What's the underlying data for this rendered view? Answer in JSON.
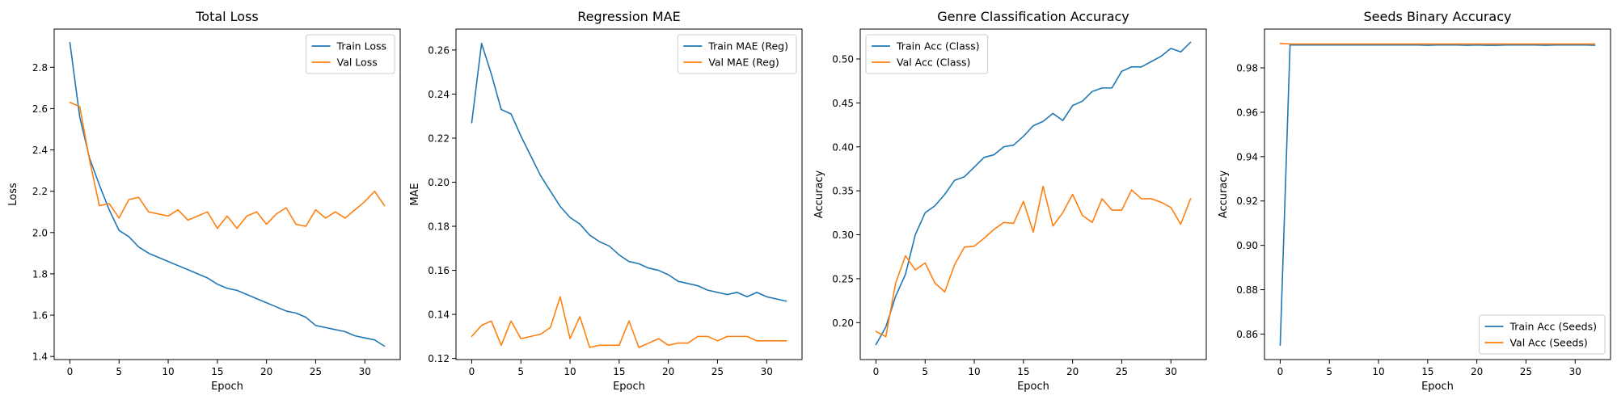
{
  "chart_data": [
    {
      "type": "line",
      "title": "Total Loss",
      "xlabel": "Epoch",
      "ylabel": "Loss",
      "xlim": [
        -1.6,
        33.6
      ],
      "ylim": [
        1.385,
        2.985
      ],
      "xticks": [
        0,
        5,
        10,
        15,
        20,
        25,
        30
      ],
      "yticks": [
        1.4,
        1.6,
        1.8,
        2.0,
        2.2,
        2.4,
        2.6,
        2.8
      ],
      "tick_decimals": 1,
      "legend_position": "top-right",
      "grid": false,
      "x": [
        0,
        1,
        2,
        3,
        4,
        5,
        6,
        7,
        8,
        9,
        10,
        11,
        12,
        13,
        14,
        15,
        16,
        17,
        18,
        19,
        20,
        21,
        22,
        23,
        24,
        25,
        26,
        27,
        28,
        29,
        30,
        31,
        32
      ],
      "series": [
        {
          "name": "Train Loss",
          "color": "#1f77b4",
          "values": [
            2.92,
            2.56,
            2.36,
            2.23,
            2.11,
            2.01,
            1.98,
            1.93,
            1.9,
            1.88,
            1.86,
            1.84,
            1.82,
            1.8,
            1.78,
            1.75,
            1.73,
            1.72,
            1.7,
            1.68,
            1.66,
            1.64,
            1.62,
            1.61,
            1.59,
            1.55,
            1.54,
            1.53,
            1.52,
            1.5,
            1.49,
            1.48,
            1.45
          ]
        },
        {
          "name": "Val Loss",
          "color": "#ff7f0e",
          "values": [
            2.63,
            2.61,
            2.35,
            2.13,
            2.14,
            2.07,
            2.16,
            2.17,
            2.1,
            2.09,
            2.08,
            2.11,
            2.06,
            2.08,
            2.1,
            2.02,
            2.08,
            2.02,
            2.08,
            2.1,
            2.04,
            2.09,
            2.12,
            2.04,
            2.03,
            2.11,
            2.07,
            2.1,
            2.07,
            2.11,
            2.15,
            2.2,
            2.13
          ]
        }
      ]
    },
    {
      "type": "line",
      "title": "Regression MAE",
      "xlabel": "Epoch",
      "ylabel": "MAE",
      "xlim": [
        -1.6,
        33.6
      ],
      "ylim": [
        0.1195,
        0.2695
      ],
      "xticks": [
        0,
        5,
        10,
        15,
        20,
        25,
        30
      ],
      "yticks": [
        0.12,
        0.14,
        0.16,
        0.18,
        0.2,
        0.22,
        0.24,
        0.26
      ],
      "tick_decimals": 2,
      "legend_position": "top-right",
      "grid": false,
      "x": [
        0,
        1,
        2,
        3,
        4,
        5,
        6,
        7,
        8,
        9,
        10,
        11,
        12,
        13,
        14,
        15,
        16,
        17,
        18,
        19,
        20,
        21,
        22,
        23,
        24,
        25,
        26,
        27,
        28,
        29,
        30,
        31,
        32
      ],
      "series": [
        {
          "name": "Train MAE (Reg)",
          "color": "#1f77b4",
          "values": [
            0.227,
            0.263,
            0.249,
            0.233,
            0.231,
            0.221,
            0.212,
            0.203,
            0.196,
            0.189,
            0.184,
            0.181,
            0.176,
            0.173,
            0.171,
            0.167,
            0.164,
            0.163,
            0.161,
            0.16,
            0.158,
            0.155,
            0.154,
            0.153,
            0.151,
            0.15,
            0.149,
            0.15,
            0.148,
            0.15,
            0.148,
            0.147,
            0.146
          ]
        },
        {
          "name": "Val MAE (Reg)",
          "color": "#ff7f0e",
          "values": [
            0.13,
            0.135,
            0.137,
            0.126,
            0.137,
            0.129,
            0.13,
            0.131,
            0.134,
            0.148,
            0.129,
            0.139,
            0.125,
            0.126,
            0.126,
            0.126,
            0.137,
            0.125,
            0.127,
            0.129,
            0.126,
            0.127,
            0.127,
            0.13,
            0.13,
            0.128,
            0.13,
            0.13,
            0.13,
            0.128,
            0.128,
            0.128,
            0.128
          ]
        }
      ]
    },
    {
      "type": "line",
      "title": "Genre Classification Accuracy",
      "xlabel": "Epoch",
      "ylabel": "Accuracy",
      "xlim": [
        -1.6,
        33.6
      ],
      "ylim": [
        0.158,
        0.534
      ],
      "xticks": [
        0,
        5,
        10,
        15,
        20,
        25,
        30
      ],
      "yticks": [
        0.2,
        0.25,
        0.3,
        0.35,
        0.4,
        0.45,
        0.5
      ],
      "tick_decimals": 2,
      "legend_position": "top-left",
      "grid": false,
      "x": [
        0,
        1,
        2,
        3,
        4,
        5,
        6,
        7,
        8,
        9,
        10,
        11,
        12,
        13,
        14,
        15,
        16,
        17,
        18,
        19,
        20,
        21,
        22,
        23,
        24,
        25,
        26,
        27,
        28,
        29,
        30,
        31,
        32
      ],
      "series": [
        {
          "name": "Train Acc (Class)",
          "color": "#1f77b4",
          "values": [
            0.175,
            0.195,
            0.23,
            0.255,
            0.3,
            0.325,
            0.333,
            0.346,
            0.362,
            0.366,
            0.377,
            0.388,
            0.391,
            0.4,
            0.402,
            0.412,
            0.424,
            0.429,
            0.438,
            0.43,
            0.447,
            0.452,
            0.463,
            0.467,
            0.467,
            0.486,
            0.491,
            0.491,
            0.497,
            0.503,
            0.512,
            0.508,
            0.519
          ]
        },
        {
          "name": "Val Acc (Class)",
          "color": "#ff7f0e",
          "values": [
            0.19,
            0.184,
            0.245,
            0.276,
            0.26,
            0.268,
            0.245,
            0.235,
            0.266,
            0.286,
            0.287,
            0.296,
            0.306,
            0.314,
            0.313,
            0.338,
            0.303,
            0.355,
            0.31,
            0.325,
            0.346,
            0.322,
            0.314,
            0.341,
            0.328,
            0.328,
            0.351,
            0.341,
            0.341,
            0.337,
            0.331,
            0.312,
            0.341
          ]
        }
      ]
    },
    {
      "type": "line",
      "title": "Seeds Binary Accuracy",
      "xlabel": "Epoch",
      "ylabel": "Accuracy",
      "xlim": [
        -1.6,
        33.6
      ],
      "ylim": [
        0.8485,
        0.9975
      ],
      "xticks": [
        0,
        5,
        10,
        15,
        20,
        25,
        30
      ],
      "yticks": [
        0.86,
        0.88,
        0.9,
        0.92,
        0.94,
        0.96,
        0.98
      ],
      "tick_decimals": 2,
      "legend_position": "bottom-right",
      "grid": false,
      "x": [
        0,
        1,
        2,
        3,
        4,
        5,
        6,
        7,
        8,
        9,
        10,
        11,
        12,
        13,
        14,
        15,
        16,
        17,
        18,
        19,
        20,
        21,
        22,
        23,
        24,
        25,
        26,
        27,
        28,
        29,
        30,
        31,
        32
      ],
      "series": [
        {
          "name": "Train Acc (Seeds)",
          "color": "#1f77b4",
          "values": [
            0.855,
            0.9903,
            0.9903,
            0.9903,
            0.9903,
            0.9903,
            0.9903,
            0.9903,
            0.9903,
            0.9903,
            0.9903,
            0.9903,
            0.9903,
            0.9903,
            0.9903,
            0.9902,
            0.9903,
            0.9903,
            0.9903,
            0.9902,
            0.9903,
            0.9902,
            0.9902,
            0.9903,
            0.9903,
            0.9903,
            0.9903,
            0.9902,
            0.9903,
            0.9903,
            0.9903,
            0.9903,
            0.9902
          ]
        },
        {
          "name": "Val Acc (Seeds)",
          "color": "#ff7f0e",
          "values": [
            0.991,
            0.9908,
            0.9908,
            0.9908,
            0.9908,
            0.9908,
            0.9908,
            0.9908,
            0.9908,
            0.9908,
            0.9908,
            0.9908,
            0.9908,
            0.9908,
            0.9908,
            0.9908,
            0.9908,
            0.9908,
            0.9908,
            0.9908,
            0.9908,
            0.9908,
            0.9908,
            0.9908,
            0.9908,
            0.9908,
            0.9908,
            0.9908,
            0.9908,
            0.9908,
            0.9908,
            0.9908,
            0.9908
          ]
        }
      ]
    }
  ]
}
